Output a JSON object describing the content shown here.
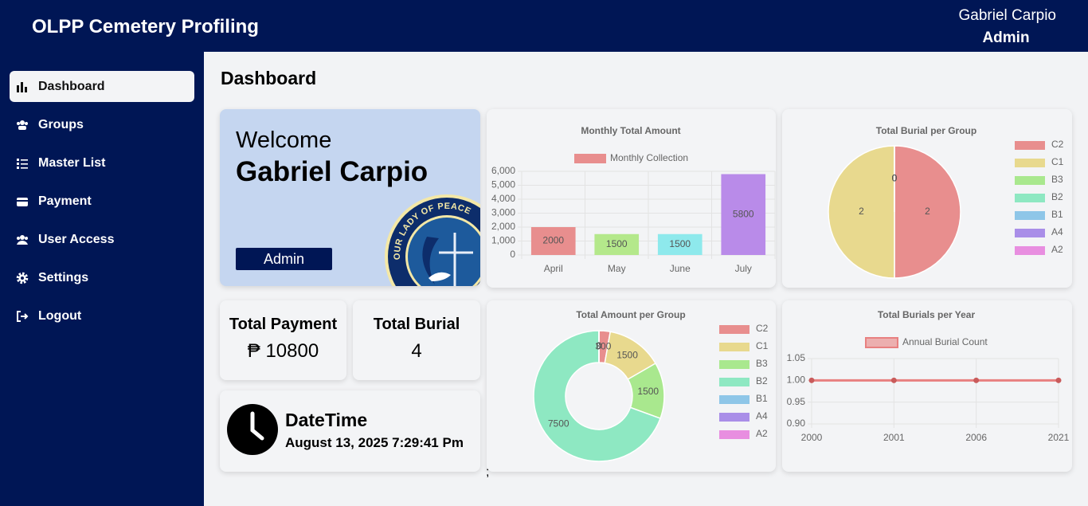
{
  "header": {
    "title": "OLPP Cemetery Profiling",
    "user_name": "Gabriel Carpio",
    "user_role": "Admin"
  },
  "sidebar": {
    "items": [
      "Dashboard",
      "Groups",
      "Master List",
      "Payment",
      "User Access",
      "Settings",
      "Logout"
    ]
  },
  "page_title": "Dashboard",
  "welcome": {
    "greeting": "Welcome",
    "name": "Gabriel Carpio",
    "role": "Admin",
    "logo_text": "OUR LADY OF PEACE"
  },
  "stats": [
    {
      "label": "Total Payment",
      "value": "₱ 10800"
    },
    {
      "label": "Total Burial",
      "value": 4
    }
  ],
  "datetime": {
    "label": "DateTime",
    "value": "August 13, 2025 7:29:41 Pm"
  },
  "stray_text": ";",
  "chart_data": [
    {
      "type": "bar",
      "title": "Monthly Total Amount",
      "categories": [
        "April",
        "May",
        "June",
        "July"
      ],
      "series": [
        {
          "name": "Monthly Collection",
          "colors": [
            "#e88e8e",
            "#b4e88b",
            "#8ee9ec",
            "#b98be9"
          ],
          "values": [
            2000,
            1500,
            1500,
            5800
          ]
        }
      ],
      "ylim": [
        0,
        6000
      ],
      "yticks": [
        0,
        {
          "value": 1000,
          "label": "1,000"
        },
        {
          "value": 2000,
          "label": "2,000"
        },
        {
          "value": 3000,
          "label": "3,000"
        },
        {
          "value": 4000,
          "label": "4,000"
        },
        {
          "value": 5000,
          "label": "5,000"
        },
        {
          "value": 6000,
          "label": "6,000"
        }
      ],
      "grid": true
    },
    {
      "type": "pie",
      "title": "Total Burial per Group",
      "categories": [
        "C2",
        "C1",
        "B3",
        "B2",
        "B1",
        "A4",
        "A2"
      ],
      "values": [
        2,
        2,
        0,
        0,
        0,
        0,
        0
      ],
      "colors": [
        "#e88e8e",
        "#e8d98e",
        "#a9e88e",
        "#8ee8c2",
        "#8ec6e8",
        "#a98ee8",
        "#e88ee0"
      ],
      "legend": "right"
    },
    {
      "type": "doughnut",
      "title": "Total Amount per Group",
      "categories": [
        "C2",
        "C1",
        "B3",
        "B2",
        "B1",
        "A4",
        "A2"
      ],
      "values": [
        300,
        1500,
        1500,
        7500,
        0,
        0,
        0
      ],
      "colors": [
        "#e88e8e",
        "#e8d98e",
        "#a9e88e",
        "#8ee8c2",
        "#8ec6e8",
        "#a98ee8",
        "#e88ee0"
      ],
      "legend": "right"
    },
    {
      "type": "line",
      "title": "Total Burials per Year",
      "categories": [
        "2000",
        "2001",
        "2006",
        "2021"
      ],
      "series": [
        {
          "name": "Annual Burial Count",
          "color": "#e88080",
          "values": [
            1,
            1,
            1,
            1
          ]
        }
      ],
      "ylim": [
        0.9,
        1.05
      ],
      "yticks": [
        {
          "value": 0.9,
          "label": "0.90"
        },
        {
          "value": 0.95,
          "label": "0.95"
        },
        {
          "value": 1,
          "label": "1.00"
        },
        {
          "value": 1.05,
          "label": "1.05"
        }
      ],
      "grid": true
    }
  ]
}
